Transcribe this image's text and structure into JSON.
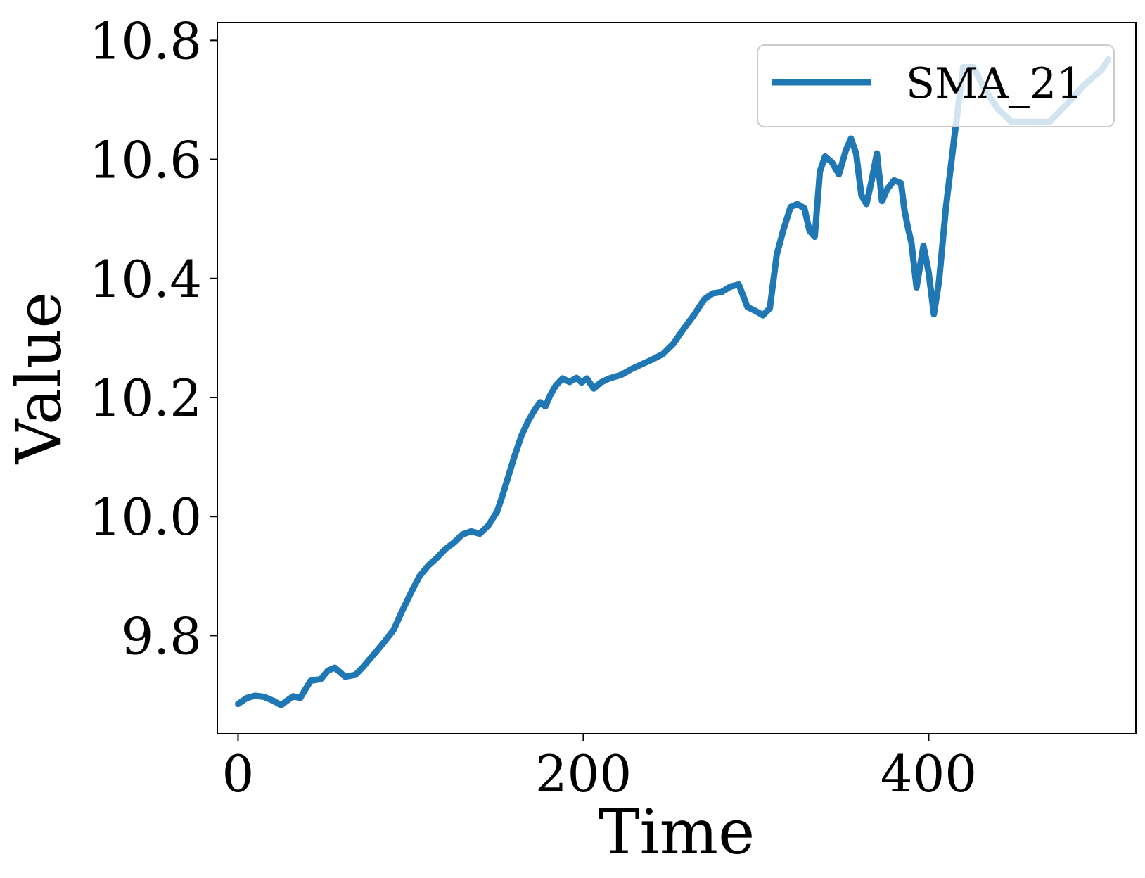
{
  "chart_data": {
    "type": "line",
    "xlabel": "Time",
    "ylabel": "Value",
    "xlim": [
      -12,
      520
    ],
    "ylim": [
      9.635,
      10.83
    ],
    "xticks": [
      0,
      200,
      400
    ],
    "xtick_labels": [
      "0",
      "200",
      "400"
    ],
    "yticks": [
      9.8,
      10.0,
      10.2,
      10.4,
      10.6,
      10.8
    ],
    "ytick_labels": [
      "9.8",
      "10.0",
      "10.2",
      "10.4",
      "10.6",
      "10.8"
    ],
    "grid": false,
    "legend": {
      "position": "upper right",
      "entries": [
        "SMA_21"
      ]
    },
    "series": [
      {
        "name": "SMA_21",
        "color": "#1f77b4",
        "x": [
          0,
          5,
          10,
          15,
          20,
          25,
          28,
          32,
          36,
          42,
          48,
          52,
          56,
          62,
          68,
          72,
          78,
          84,
          90,
          95,
          100,
          105,
          110,
          115,
          120,
          125,
          130,
          135,
          140,
          145,
          150,
          153,
          156,
          160,
          164,
          168,
          172,
          175,
          178,
          181,
          184,
          188,
          192,
          196,
          199,
          202,
          206,
          210,
          215,
          222,
          228,
          234,
          240,
          246,
          252,
          258,
          264,
          270,
          275,
          280,
          285,
          290,
          295,
          300,
          304,
          308,
          312,
          316,
          320,
          324,
          328,
          331,
          334,
          337,
          340,
          344,
          348,
          352,
          355,
          358,
          361,
          364,
          367,
          370,
          373,
          376,
          380,
          384,
          386,
          388,
          390,
          393,
          397,
          400,
          403,
          406,
          410,
          415,
          420,
          426,
          432,
          440,
          448,
          456,
          463,
          470,
          477,
          484,
          490,
          496,
          500,
          504
        ],
        "y": [
          9.685,
          9.695,
          9.699,
          9.697,
          9.691,
          9.683,
          9.69,
          9.698,
          9.695,
          9.724,
          9.727,
          9.741,
          9.746,
          9.731,
          9.734,
          9.746,
          9.766,
          9.787,
          9.809,
          9.841,
          9.871,
          9.899,
          9.917,
          9.93,
          9.945,
          9.956,
          9.97,
          9.975,
          9.971,
          9.985,
          10.008,
          10.034,
          10.062,
          10.1,
          10.135,
          10.16,
          10.18,
          10.192,
          10.185,
          10.205,
          10.22,
          10.232,
          10.226,
          10.233,
          10.225,
          10.232,
          10.215,
          10.225,
          10.232,
          10.238,
          10.248,
          10.256,
          10.264,
          10.273,
          10.29,
          10.315,
          10.338,
          10.365,
          10.375,
          10.377,
          10.386,
          10.39,
          10.352,
          10.345,
          10.338,
          10.35,
          10.44,
          10.483,
          10.52,
          10.525,
          10.518,
          10.48,
          10.47,
          10.58,
          10.605,
          10.595,
          10.575,
          10.615,
          10.635,
          10.61,
          10.54,
          10.525,
          10.565,
          10.61,
          10.53,
          10.55,
          10.565,
          10.56,
          10.515,
          10.485,
          10.46,
          10.385,
          10.455,
          10.41,
          10.34,
          10.395,
          10.52,
          10.64,
          10.755,
          10.755,
          10.72,
          10.685,
          10.663,
          10.663,
          10.663,
          10.663,
          10.684,
          10.705,
          10.725,
          10.74,
          10.75,
          10.768
        ]
      }
    ]
  }
}
